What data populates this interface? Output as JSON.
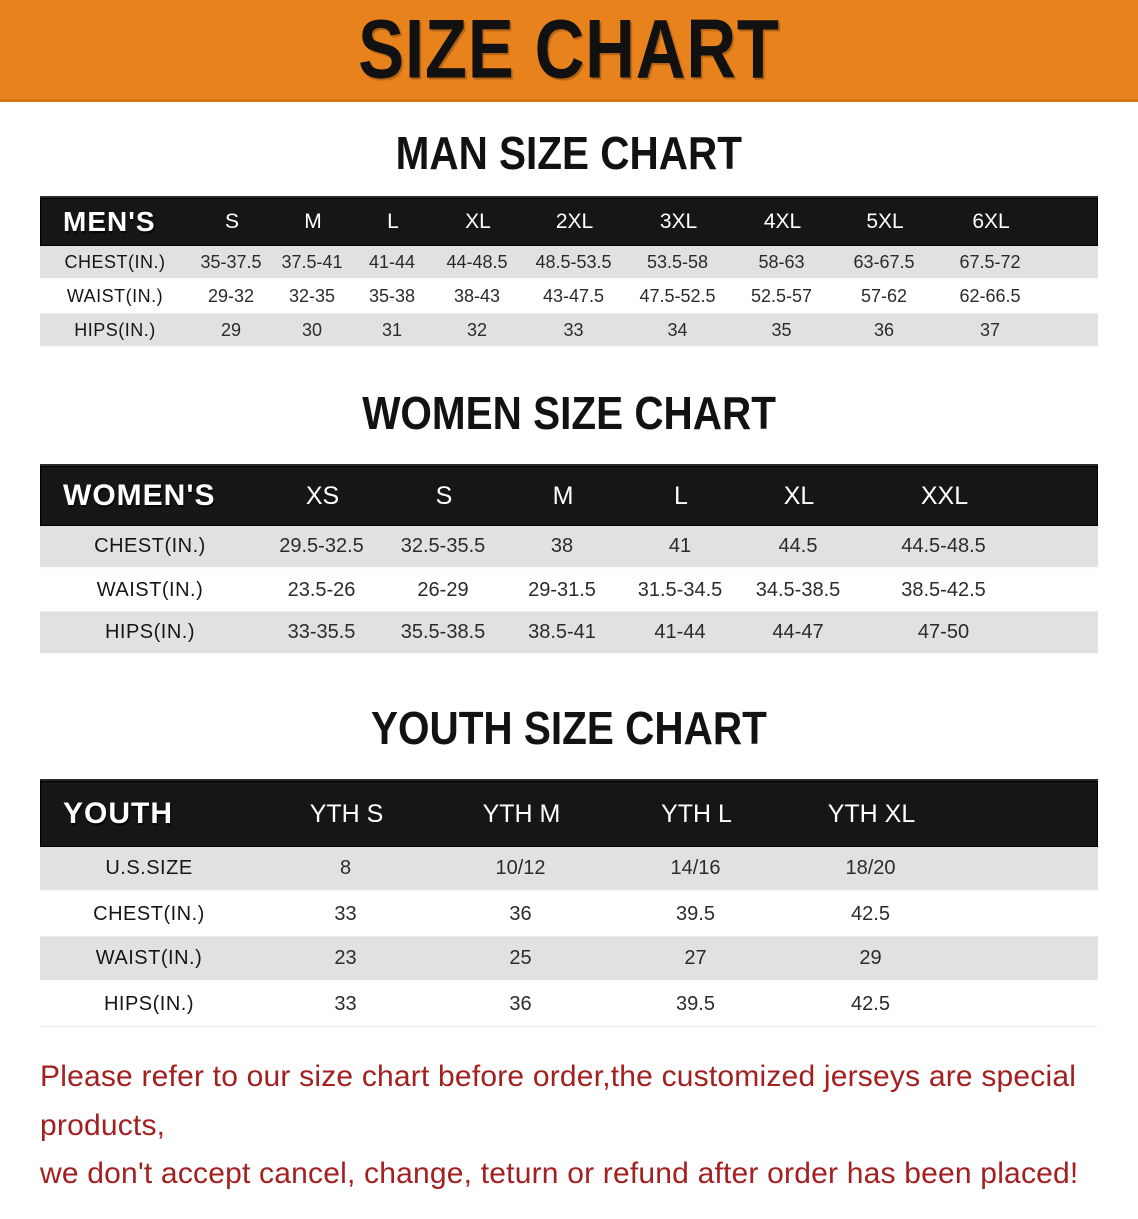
{
  "banner": {
    "title": "SIZE CHART"
  },
  "colors": {
    "banner_bg": "#E8821D",
    "table_header_bar": "#161616",
    "row_shaded": "#E1E1E1",
    "disclaimer_red": "#A32020"
  },
  "sections": [
    {
      "heading": "MAN SIZE CHART",
      "table": {
        "corner": "MEN'S",
        "columns": [
          "S",
          "M",
          "L",
          "XL",
          "2XL",
          "3XL",
          "4XL",
          "5XL",
          "6XL"
        ],
        "rows": [
          {
            "label": "CHEST(IN.)",
            "values": [
              "35-37.5",
              "37.5-41",
              "41-44",
              "44-48.5",
              "48.5-53.5",
              "53.5-58",
              "58-63",
              "63-67.5",
              "67.5-72"
            ]
          },
          {
            "label": "WAIST(IN.)",
            "values": [
              "29-32",
              "32-35",
              "35-38",
              "38-43",
              "43-47.5",
              "47.5-52.5",
              "52.5-57",
              "57-62",
              "62-66.5"
            ]
          },
          {
            "label": "HIPS(IN.)",
            "values": [
              "29",
              "30",
              "31",
              "32",
              "33",
              "34",
              "35",
              "36",
              "37"
            ]
          }
        ]
      }
    },
    {
      "heading": "WOMEN SIZE CHART",
      "table": {
        "corner": "WOMEN'S",
        "columns": [
          "XS",
          "S",
          "M",
          "L",
          "XL",
          "XXL"
        ],
        "rows": [
          {
            "label": "CHEST(IN.)",
            "values": [
              "29.5-32.5",
              "32.5-35.5",
              "38",
              "41",
              "44.5",
              "44.5-48.5"
            ]
          },
          {
            "label": "WAIST(IN.)",
            "values": [
              "23.5-26",
              "26-29",
              "29-31.5",
              "31.5-34.5",
              "34.5-38.5",
              "38.5-42.5"
            ]
          },
          {
            "label": "HIPS(IN.)",
            "values": [
              "33-35.5",
              "35.5-38.5",
              "38.5-41",
              "41-44",
              "44-47",
              "47-50"
            ]
          }
        ]
      }
    },
    {
      "heading": "YOUTH SIZE CHART",
      "table": {
        "corner": "YOUTH",
        "columns": [
          "YTH S",
          "YTH M",
          "YTH L",
          "YTH XL"
        ],
        "rows": [
          {
            "label": "U.S.SIZE",
            "values": [
              "8",
              "10/12",
              "14/16",
              "18/20"
            ]
          },
          {
            "label": "CHEST(IN.)",
            "values": [
              "33",
              "36",
              "39.5",
              "42.5"
            ]
          },
          {
            "label": "WAIST(IN.)",
            "values": [
              "23",
              "25",
              "27",
              "29"
            ]
          },
          {
            "label": "HIPS(IN.)",
            "values": [
              "33",
              "36",
              "39.5",
              "42.5"
            ]
          }
        ]
      }
    }
  ],
  "disclaimer": {
    "line1": "Please refer to our size chart before order,the customized jerseys are special products,",
    "line2": "we don't accept cancel, change, teturn or refund after order has been placed!"
  }
}
